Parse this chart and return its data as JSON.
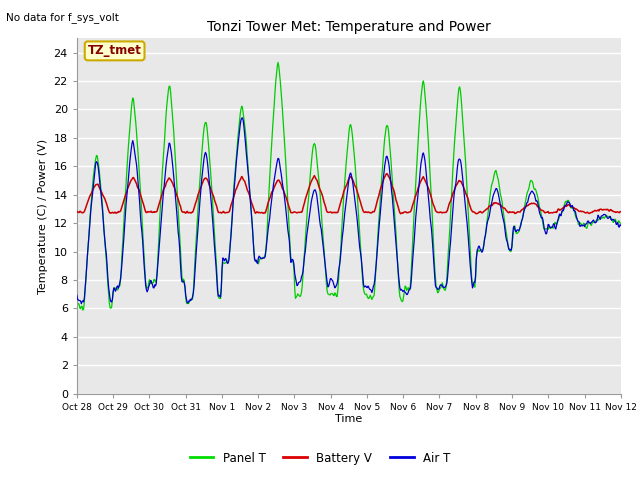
{
  "title": "Tonzi Tower Met: Temperature and Power",
  "top_left_text": "No data for f_sys_volt",
  "ylabel": "Temperature (C) / Power (V)",
  "xlabel": "Time",
  "ylim": [
    0,
    25
  ],
  "yticks": [
    0,
    2,
    4,
    6,
    8,
    10,
    12,
    14,
    16,
    18,
    20,
    22,
    24
  ],
  "xtick_labels": [
    "Oct 28",
    "Oct 29",
    "Oct 30",
    "Oct 31",
    "Nov 1",
    "Nov 2",
    "Nov 3",
    "Nov 4",
    "Nov 5",
    "Nov 6",
    "Nov 7",
    "Nov 8",
    "Nov 9",
    "Nov 10",
    "Nov 11",
    "Nov 12"
  ],
  "legend_entries": [
    "Panel T",
    "Battery V",
    "Air T"
  ],
  "legend_colors": [
    "#00dd00",
    "#dd0000",
    "#0000dd"
  ],
  "annotation_box_text": "TZ_tmet",
  "annotation_box_color": "#ffffcc",
  "annotation_box_edge": "#ccaa00",
  "background_color": "#e8e8e8",
  "fig_background": "#ffffff",
  "grid_color": "#ffffff",
  "panel_t_color": "#00cc00",
  "battery_v_color": "#cc0000",
  "air_t_color": "#0000cc",
  "panel_peak_heights": [
    17,
    21,
    22,
    19.5,
    20.5,
    23.5,
    17.8,
    19.3,
    19.2,
    22.3,
    21.8,
    15.8,
    15,
    13.5,
    12.5
  ],
  "panel_trough": [
    6.1,
    7.5,
    7.9,
    6.6,
    9.2,
    9.4,
    6.9,
    7.0,
    6.7,
    7.3,
    7.5,
    10.0,
    11.5,
    11.8,
    12.0
  ],
  "air_peak_heights": [
    16.5,
    18,
    17.8,
    17.2,
    19.7,
    16.6,
    14.5,
    15.6,
    16.9,
    17.1,
    16.7,
    14.5,
    14.3,
    13.5,
    12.5
  ],
  "air_trough": [
    6.5,
    7.5,
    7.8,
    6.5,
    9.3,
    9.5,
    7.8,
    7.7,
    7.3,
    7.3,
    7.5,
    10.2,
    11.5,
    11.8,
    12.0
  ],
  "batt_peak_heights": [
    15,
    15.5,
    15.5,
    15.5,
    15.5,
    15.3,
    15.6,
    15.6,
    15.8,
    15.5,
    15.3,
    13.5,
    13.5,
    13.3,
    13.0
  ],
  "batt_baseline": 12.75
}
